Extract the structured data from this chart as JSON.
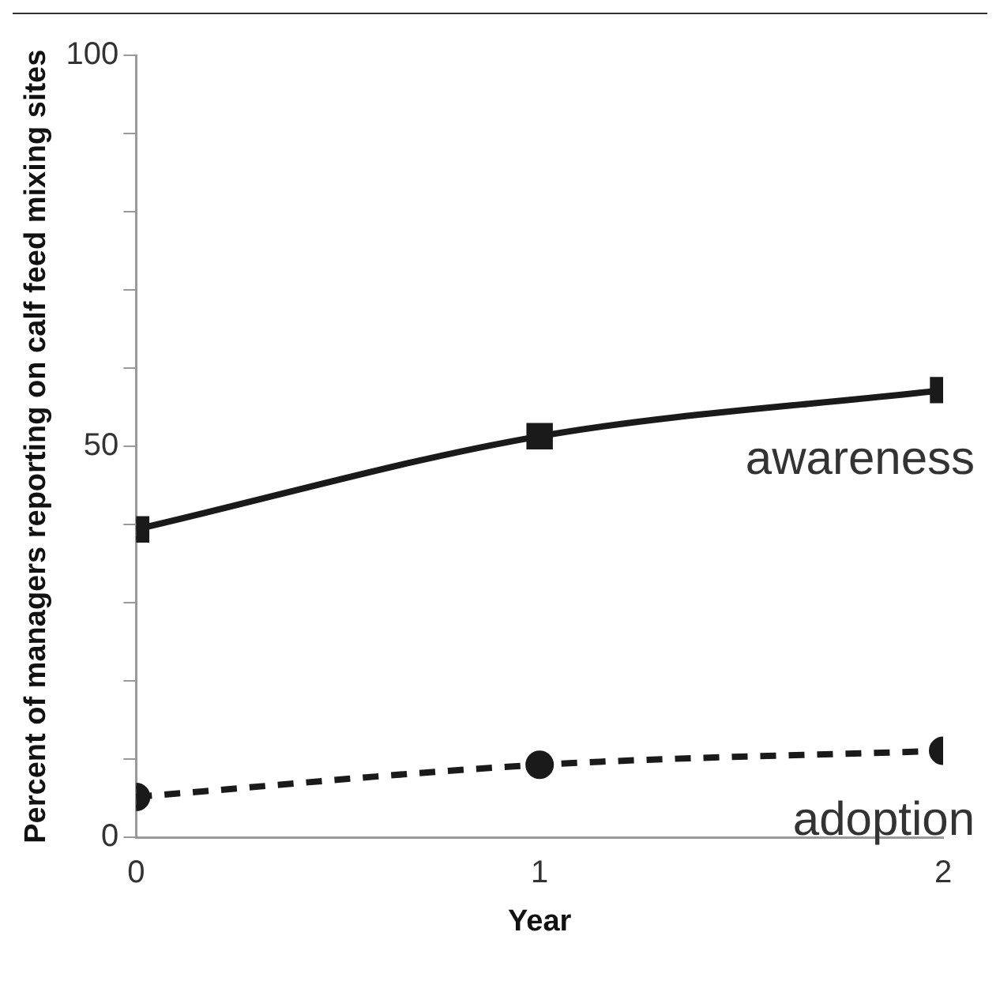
{
  "chart_data": {
    "type": "line",
    "xlabel": "Year",
    "ylabel": "Percent of managers reporting on calf feed mixing sites",
    "x": [
      0,
      1,
      2
    ],
    "xlim": [
      0,
      2
    ],
    "xticks": [
      0,
      1,
      2
    ],
    "ylim": [
      0,
      100
    ],
    "yticks": [
      0,
      {
        "value": 10,
        "label": null
      },
      {
        "value": 20,
        "label": null
      },
      {
        "value": 30,
        "label": null
      },
      {
        "value": 40,
        "label": null
      },
      50,
      {
        "value": 60,
        "label": null
      },
      {
        "value": 70,
        "label": null
      },
      {
        "value": 80,
        "label": null
      },
      {
        "value": 90,
        "label": null
      },
      100
    ],
    "grid": false,
    "legend": false,
    "series": [
      {
        "name": "awareness",
        "color": "#1a1a1a",
        "values": [
          39.4,
          51.3,
          57.2
        ],
        "marker": "square",
        "line_style": "solid"
      },
      {
        "name": "adoption",
        "color": "#1a1a1a",
        "values": [
          5.2,
          9.3,
          11.1
        ],
        "marker": "circle",
        "line_style": "dashed"
      }
    ]
  }
}
